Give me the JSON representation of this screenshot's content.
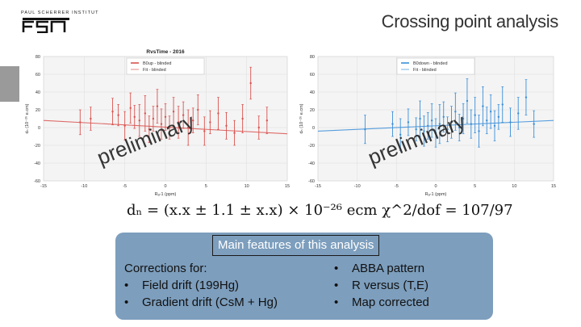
{
  "header": {
    "logo_text": "PAUL SCHERRER INSTITUT",
    "title": "Crossing point analysis"
  },
  "colors": {
    "left_series": "#d9534f",
    "right_series": "#3b8fd9",
    "panel_bg": "#7d9ebd",
    "watermark": "#222222"
  },
  "chart_data": [
    {
      "type": "scatter",
      "title": "RvsTime - 2016",
      "xlabel": "Rₐ-1 (ppm)",
      "ylabel": "dₙ (10⁻²⁶ e.cm)",
      "xlim": [
        -15,
        15
      ],
      "ylim": [
        -60,
        80
      ],
      "x_ticks": [
        "-15",
        "-10",
        "-5",
        "0",
        "5",
        "10",
        "15"
      ],
      "y_ticks": [
        "80",
        "60",
        "40",
        "20",
        "0",
        "-20",
        "-40",
        "-60"
      ],
      "legend": [
        "B0up - blinded",
        "Fit - blinded"
      ],
      "legend_position": "top-center",
      "watermark": "preliminary",
      "fit_line": {
        "x": [
          -15,
          15
        ],
        "y": [
          8,
          -7
        ]
      },
      "points": [
        {
          "x": -10.5,
          "y": 6,
          "err": 14
        },
        {
          "x": -9.2,
          "y": 10,
          "err": 13
        },
        {
          "x": -6.5,
          "y": 18,
          "err": 15
        },
        {
          "x": -5.8,
          "y": 14,
          "err": 12
        },
        {
          "x": -5.0,
          "y": 2,
          "err": 16
        },
        {
          "x": -4.3,
          "y": 22,
          "err": 17
        },
        {
          "x": -3.8,
          "y": 12,
          "err": 13
        },
        {
          "x": -3.2,
          "y": 8,
          "err": 18
        },
        {
          "x": -2.5,
          "y": 16,
          "err": 20
        },
        {
          "x": -2.0,
          "y": -2,
          "err": 15
        },
        {
          "x": -1.5,
          "y": 10,
          "err": 14
        },
        {
          "x": -1.0,
          "y": 24,
          "err": 19
        },
        {
          "x": -0.5,
          "y": 4,
          "err": 17
        },
        {
          "x": 0.0,
          "y": 12,
          "err": 15
        },
        {
          "x": 0.5,
          "y": 0,
          "err": 13
        },
        {
          "x": 1.0,
          "y": 18,
          "err": 16
        },
        {
          "x": 1.6,
          "y": 6,
          "err": 18
        },
        {
          "x": 2.2,
          "y": 14,
          "err": 15
        },
        {
          "x": 2.8,
          "y": 0,
          "err": 20
        },
        {
          "x": 3.4,
          "y": 8,
          "err": 14
        },
        {
          "x": 4.0,
          "y": 20,
          "err": 17
        },
        {
          "x": 4.8,
          "y": -4,
          "err": 16
        },
        {
          "x": 5.5,
          "y": 6,
          "err": 13
        },
        {
          "x": 6.5,
          "y": 16,
          "err": 18
        },
        {
          "x": 7.5,
          "y": 2,
          "err": 15
        },
        {
          "x": 8.5,
          "y": -6,
          "err": 14
        },
        {
          "x": 9.5,
          "y": 10,
          "err": 16
        },
        {
          "x": 10.5,
          "y": 50,
          "err": 18
        },
        {
          "x": 11.5,
          "y": 0,
          "err": 13
        },
        {
          "x": 12.5,
          "y": 8,
          "err": 15
        }
      ]
    },
    {
      "type": "scatter",
      "title": "",
      "xlabel": "Rₐ-1 (ppm)",
      "ylabel": "dₙ (10⁻²⁶ e.cm)",
      "xlim": [
        -15,
        15
      ],
      "ylim": [
        -60,
        80
      ],
      "x_ticks": [
        "-15",
        "-10",
        "-5",
        "0",
        "5",
        "10",
        "15"
      ],
      "y_ticks": [
        "80",
        "60",
        "40",
        "20",
        "0",
        "-20",
        "-40",
        "-60"
      ],
      "legend": [
        "B0down - blinded",
        "Fit - blinded"
      ],
      "legend_position": "top-center",
      "watermark": "preliminary",
      "fit_line": {
        "x": [
          -15,
          15
        ],
        "y": [
          -4,
          8
        ]
      },
      "points": [
        {
          "x": -9.0,
          "y": -2,
          "err": 16
        },
        {
          "x": -5.5,
          "y": 4,
          "err": 14
        },
        {
          "x": -4.5,
          "y": -8,
          "err": 18
        },
        {
          "x": -3.5,
          "y": 6,
          "err": 15
        },
        {
          "x": -2.5,
          "y": -2,
          "err": 13
        },
        {
          "x": -2.0,
          "y": 10,
          "err": 20
        },
        {
          "x": -1.5,
          "y": -4,
          "err": 17
        },
        {
          "x": -1.0,
          "y": 2,
          "err": 15
        },
        {
          "x": -0.5,
          "y": 8,
          "err": 19
        },
        {
          "x": 0.0,
          "y": -6,
          "err": 16
        },
        {
          "x": 0.5,
          "y": 4,
          "err": 22
        },
        {
          "x": 1.0,
          "y": 12,
          "err": 17
        },
        {
          "x": 1.5,
          "y": -2,
          "err": 14
        },
        {
          "x": 2.0,
          "y": 6,
          "err": 18
        },
        {
          "x": 2.5,
          "y": 18,
          "err": 21
        },
        {
          "x": 3.0,
          "y": 0,
          "err": 15
        },
        {
          "x": 3.5,
          "y": 10,
          "err": 17
        },
        {
          "x": 4.0,
          "y": 30,
          "err": 25
        },
        {
          "x": 4.5,
          "y": 4,
          "err": 16
        },
        {
          "x": 5.0,
          "y": 14,
          "err": 20
        },
        {
          "x": 5.5,
          "y": -4,
          "err": 18
        },
        {
          "x": 6.0,
          "y": 24,
          "err": 22
        },
        {
          "x": 6.5,
          "y": 8,
          "err": 15
        },
        {
          "x": 7.0,
          "y": 18,
          "err": 19
        },
        {
          "x": 7.5,
          "y": 2,
          "err": 17
        },
        {
          "x": 8.0,
          "y": 12,
          "err": 14
        },
        {
          "x": 8.5,
          "y": 26,
          "err": 20
        },
        {
          "x": 9.5,
          "y": 6,
          "err": 16
        },
        {
          "x": 10.5,
          "y": 16,
          "err": 18
        },
        {
          "x": 11.5,
          "y": 34,
          "err": 20
        },
        {
          "x": 12.5,
          "y": 4,
          "err": 15
        }
      ]
    }
  ],
  "formula": "dₙ = (x.x ± 1.1 ± x.x) × 10⁻²⁶ ecm χ^2/dof = 107/97",
  "panel": {
    "title": "Main features of this analysis",
    "left_heading": "Corrections for:",
    "left_items": [
      "Field drift (199Hg)",
      "Gradient drift (CsM + Hg)"
    ],
    "right_items": [
      "ABBA pattern",
      "R versus (T,E)",
      "Map corrected"
    ],
    "bullet": "•"
  }
}
